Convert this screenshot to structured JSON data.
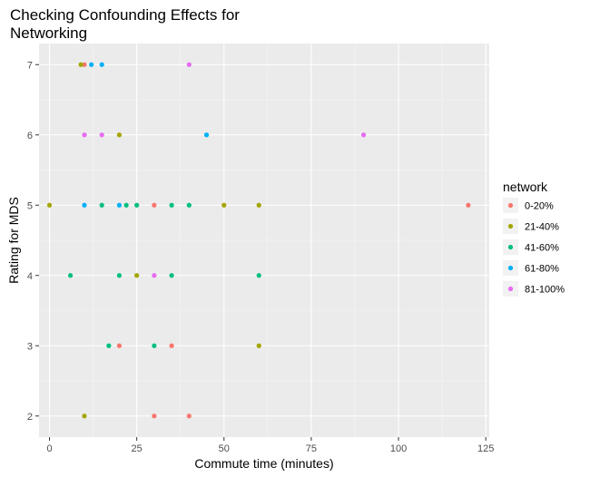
{
  "chart_data": {
    "type": "scatter",
    "title_lines": [
      "Checking Confounding Effects for",
      "Networking"
    ],
    "xlabel": "Commute time (minutes)",
    "ylabel": "Rating for MDS",
    "xlim": [
      -3,
      126
    ],
    "ylim": [
      1.7,
      7.3
    ],
    "x_ticks": [
      0,
      25,
      50,
      75,
      100,
      125
    ],
    "y_ticks": [
      2,
      3,
      4,
      5,
      6,
      7
    ],
    "grid": true,
    "legend": {
      "title": "network",
      "position": "right"
    },
    "series": [
      {
        "name": "0-20%",
        "color": "#F8766D",
        "points": [
          [
            10,
            7
          ],
          [
            30,
            5
          ],
          [
            120,
            5
          ],
          [
            20,
            3
          ],
          [
            35,
            3
          ],
          [
            30,
            2
          ],
          [
            40,
            2
          ]
        ]
      },
      {
        "name": "21-40%",
        "color": "#A3A500",
        "points": [
          [
            9,
            7
          ],
          [
            20,
            6
          ],
          [
            0,
            5
          ],
          [
            50,
            5
          ],
          [
            60,
            5
          ],
          [
            25,
            4
          ],
          [
            60,
            3
          ],
          [
            10,
            2
          ]
        ]
      },
      {
        "name": "41-60%",
        "color": "#00BF7D",
        "points": [
          [
            15,
            5
          ],
          [
            22,
            5
          ],
          [
            25,
            5
          ],
          [
            35,
            5
          ],
          [
            40,
            5
          ],
          [
            6,
            4
          ],
          [
            20,
            4
          ],
          [
            35,
            4
          ],
          [
            60,
            4
          ],
          [
            17,
            3
          ],
          [
            30,
            3
          ]
        ]
      },
      {
        "name": "61-80%",
        "color": "#00B0F6",
        "points": [
          [
            12,
            7
          ],
          [
            15,
            7
          ],
          [
            45,
            6
          ],
          [
            10,
            5
          ],
          [
            20,
            5
          ]
        ]
      },
      {
        "name": "81-100%",
        "color": "#E76BF3",
        "points": [
          [
            40,
            7
          ],
          [
            10,
            6
          ],
          [
            15,
            6
          ],
          [
            90,
            6
          ],
          [
            30,
            4
          ]
        ]
      }
    ]
  }
}
